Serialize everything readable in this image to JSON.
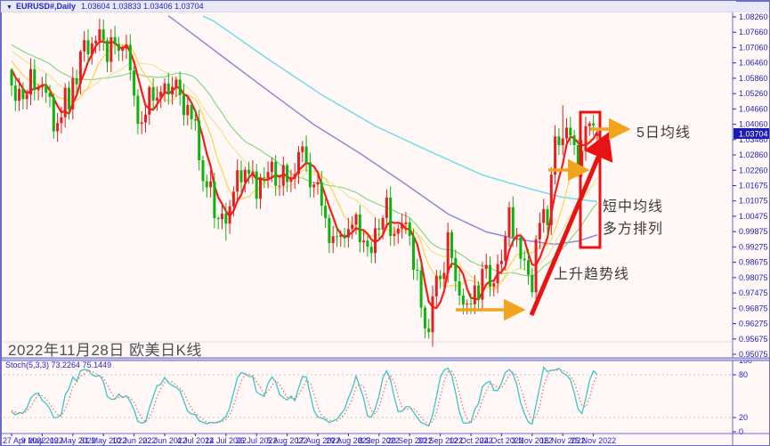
{
  "window": {
    "symbol_title": "EURUSD#,Daily",
    "ohlc_title": "1.03604 1.03833 1.03406 1.03704",
    "dropdown_icon": "▼"
  },
  "colors": {
    "chart_bg": "#FFF8F7",
    "title_bg": "#E9E9F6",
    "frame": "#6A6AD0",
    "axis_text": "#2424C8",
    "candle_up": "#E62020",
    "candle_down": "#0EB40E",
    "price_box_bg": "#1C1CB0",
    "price_box_text": "#FFFFFF",
    "grid_dash": "#C9C9C9",
    "annotation_orange": "#F2A41C",
    "annotation_red": "#E81414",
    "caption_rule": "#DCDCEE",
    "stoch_k": "#38C6C6",
    "stoch_d": "#F06868"
  },
  "annotations": {
    "ma5_label": "5日均线",
    "alignment_line1": "短中均线",
    "alignment_line2": "多方排列",
    "trend_label": "上升趋势线",
    "date_caption": "2022年11月28日 欧美日K线"
  },
  "chart_data": {
    "type": "candlestick",
    "symbol": "EURUSD#",
    "timeframe": "Daily",
    "title": "EURUSD#,Daily 1.03604 1.03833 1.03406 1.03704",
    "current_price": "1.03704",
    "last_ohlc": {
      "open": 1.03604,
      "high": 1.03833,
      "low": 1.03406,
      "close": 1.03704
    },
    "y_axis_labels": [
      "1.08260",
      "1.07660",
      "1.07060",
      "1.06460",
      "1.05860",
      "1.05260",
      "1.04660",
      "1.04060",
      "1.03460",
      "1.02860",
      "1.02260",
      "1.01675",
      "1.01075",
      "1.00475",
      "0.99875",
      "0.99275",
      "0.98675",
      "0.98075",
      "0.97475",
      "0.96875",
      "0.96275",
      "0.95675",
      "0.95075"
    ],
    "y_axis_range": [
      0.95075,
      1.0826
    ],
    "x_tick_labels": [
      "27 Apr 2022",
      "9 May 2022",
      "19 May 2022",
      "31 May 2022",
      "10 Jun 2022",
      "22 Jun 2022",
      "4 Jul 2022",
      "14 Jul 2022",
      "26 Jul 2022",
      "5 Aug 2022",
      "17 Aug 2022",
      "29 Aug 2022",
      "8 Sep 2022",
      "20 Sep 2022",
      "30 Sep 2022",
      "12 Oct 2022",
      "24 Oct 2022",
      "3 Nov 2022",
      "15 Nov 2022",
      "25 Nov 2022"
    ],
    "bars_per_tick": 8,
    "closes": [
      1.0558,
      1.0498,
      1.0545,
      1.0505,
      1.0522,
      1.0622,
      1.054,
      1.0552,
      1.0561,
      1.053,
      1.0513,
      1.0379,
      1.0411,
      1.0434,
      1.0549,
      1.0465,
      1.0586,
      1.0563,
      1.0691,
      1.0735,
      1.068,
      1.0723,
      1.0733,
      1.0777,
      1.0734,
      1.065,
      1.0747,
      1.0719,
      1.0694,
      1.0702,
      1.0717,
      1.0617,
      1.0518,
      1.0408,
      1.0414,
      1.0444,
      1.0551,
      1.0499,
      1.0511,
      1.0533,
      1.0566,
      1.0523,
      1.0553,
      1.0581,
      1.052,
      1.0442,
      1.0482,
      1.0426,
      1.0421,
      1.0266,
      1.0184,
      1.016,
      1.0183,
      1.004,
      1.0036,
      1.0057,
      1.0018,
      1.0086,
      1.0143,
      1.0227,
      1.018,
      1.0229,
      1.0213,
      1.0222,
      1.0115,
      1.0199,
      1.0196,
      1.022,
      1.026,
      1.0166,
      1.0166,
      1.0247,
      1.0181,
      1.0193,
      1.0212,
      1.0298,
      1.032,
      1.0258,
      1.016,
      1.0171,
      1.018,
      1.0088,
      1.004,
      0.9942,
      0.9969,
      0.9967,
      0.9975,
      0.9964,
      0.9997,
      1.0014,
      1.0054,
      0.9945,
      0.9952,
      0.9928,
      0.9903,
      1.0,
      0.9995,
      1.004,
      1.012,
      0.997,
      0.9979,
      0.9999,
      1.0016,
      1.0023,
      0.997,
      0.9838,
      0.9835,
      0.969,
      0.9609,
      0.9594,
      0.9734,
      0.9815,
      0.9802,
      0.9826,
      0.9985,
      0.9884,
      0.9793,
      0.9737,
      0.9702,
      0.9706,
      0.9703,
      0.9777,
      0.9721,
      0.9841,
      0.9857,
      0.9772,
      0.9785,
      0.986,
      0.9873,
      0.9968,
      1.0082,
      0.9965,
      0.9965,
      0.9881,
      0.9875,
      0.9818,
      0.975,
      0.9957,
      1.0021,
      1.0075,
      1.0012,
      1.021,
      1.0359,
      1.0325,
      1.0351,
      1.0393,
      1.0363,
      1.0325,
      1.0239,
      1.0302,
      1.0399,
      1.041,
      1.0402,
      1.03704
    ],
    "open_rule": "previous_close",
    "wick_overrides": {
      "11": {
        "low": 1.0349
      },
      "56": {
        "low": 0.9952
      },
      "109": {
        "low": 0.9568
      },
      "110": {
        "low": 0.9536
      },
      "136": {
        "low": 0.973
      },
      "144": {
        "high": 1.0481
      },
      "153": {
        "open": 1.03604,
        "high": 1.03833,
        "low": 1.03406,
        "close": 1.03704
      }
    },
    "moving_averages": [
      {
        "name": "MA30",
        "period": 30,
        "color": "#86D886",
        "width": 1.2
      },
      {
        "name": "MA20",
        "period": 20,
        "color": "#EFE49C",
        "width": 1.2
      },
      {
        "name": "MA10",
        "period": 10,
        "color": "#FFD24D",
        "width": 1.2
      },
      {
        "name": "MA5",
        "period": 5,
        "color": "#FF1A1A",
        "width": 2.2
      }
    ],
    "slow_ma_polylines": [
      {
        "name": "MA120",
        "color": "#70DCEC",
        "width": 1.5,
        "points": [
          [
            50,
            1.083
          ],
          [
            53,
            1.0808
          ],
          [
            67,
            1.0661
          ],
          [
            81,
            1.0522
          ],
          [
            95,
            1.04
          ],
          [
            109,
            1.0302
          ],
          [
            123,
            1.0208
          ],
          [
            135,
            1.0156
          ],
          [
            144,
            1.0121
          ],
          [
            153,
            1.0104
          ]
        ]
      },
      {
        "name": "MA60",
        "color": "#8A8AD8",
        "width": 1.5,
        "points": [
          [
            41,
            1.083
          ],
          [
            43,
            1.0808
          ],
          [
            56,
            1.0661
          ],
          [
            67,
            1.0538
          ],
          [
            79,
            1.0405
          ],
          [
            91,
            1.0293
          ],
          [
            102,
            1.0182
          ],
          [
            114,
            1.0056
          ],
          [
            124,
            0.9986
          ],
          [
            133,
            0.9955
          ],
          [
            142,
            0.9937
          ],
          [
            148,
            0.995
          ],
          [
            153,
            0.9974
          ]
        ]
      }
    ],
    "prehistory_anchors": [
      [
        -40,
        1.082
      ],
      [
        -20,
        1.075
      ],
      [
        -10,
        1.072
      ],
      [
        -1,
        1.062
      ]
    ],
    "stochastic": {
      "label_full": "Stoch(5,3,3) 73.2264 75.1449",
      "name": "Stoch",
      "k_period": 5,
      "d_period": 3,
      "slowing": 3,
      "k_value": 73.2264,
      "d_value": 75.1449,
      "levels": [
        80,
        20
      ],
      "axis_labels": [
        "100",
        "80",
        "20",
        "0"
      ],
      "range": [
        0,
        100
      ]
    }
  }
}
